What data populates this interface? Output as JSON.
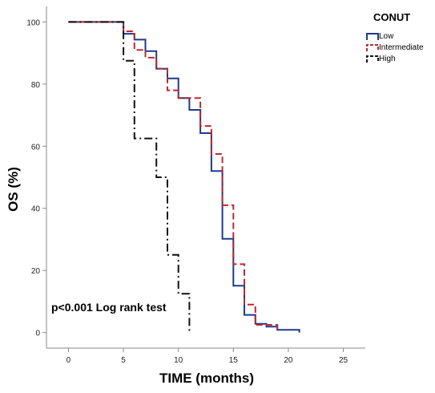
{
  "chart_data": {
    "type": "line",
    "step": true,
    "xlabel": "TIME (months)",
    "ylabel": "OS (%)",
    "xlim": [
      -2,
      27
    ],
    "ylim": [
      -5,
      105
    ],
    "xticks": [
      0,
      5,
      10,
      15,
      20,
      25
    ],
    "yticks": [
      0,
      20,
      40,
      60,
      80,
      100
    ],
    "x_tick_labels": [
      "0",
      "5",
      "10",
      "15",
      "20",
      "25"
    ],
    "y_tick_labels": [
      "0",
      "20",
      "40",
      "60",
      "80",
      "100"
    ],
    "grid": false,
    "legend": {
      "title": "CONUT",
      "position": "top-right"
    },
    "annotation": "p<0.001 Log rank test",
    "series": [
      {
        "name": "Low",
        "color": "#1f3a8a",
        "dash": "solid",
        "points": [
          [
            0,
            100
          ],
          [
            5,
            100
          ],
          [
            5,
            96.2
          ],
          [
            6,
            96.2
          ],
          [
            6,
            94.3
          ],
          [
            7,
            94.3
          ],
          [
            7,
            90.6
          ],
          [
            8,
            90.6
          ],
          [
            8,
            84.9
          ],
          [
            9,
            84.9
          ],
          [
            9,
            81.8
          ],
          [
            10,
            81.8
          ],
          [
            10,
            75.5
          ],
          [
            11,
            75.5
          ],
          [
            11,
            71.7
          ],
          [
            12,
            71.7
          ],
          [
            12,
            64.2
          ],
          [
            13,
            64.2
          ],
          [
            13,
            52
          ],
          [
            14,
            52
          ],
          [
            14,
            30.2
          ],
          [
            15,
            30.2
          ],
          [
            15,
            15.1
          ],
          [
            16,
            15.1
          ],
          [
            16,
            5.7
          ],
          [
            17,
            5.7
          ],
          [
            17,
            2.8
          ],
          [
            18,
            2.8
          ],
          [
            18,
            1.9
          ],
          [
            19,
            1.9
          ],
          [
            19,
            0.9
          ],
          [
            21,
            0.9
          ],
          [
            21,
            0
          ]
        ]
      },
      {
        "name": "Intermediate",
        "color": "#c0282d",
        "dash": "dashed",
        "points": [
          [
            0,
            100
          ],
          [
            5,
            100
          ],
          [
            5,
            97
          ],
          [
            6,
            97
          ],
          [
            6,
            91
          ],
          [
            7,
            91
          ],
          [
            7,
            88.5
          ],
          [
            8,
            88.5
          ],
          [
            8,
            85
          ],
          [
            9,
            85
          ],
          [
            9,
            78
          ],
          [
            10,
            78
          ],
          [
            10,
            75.5
          ],
          [
            12,
            75.5
          ],
          [
            12,
            66.5
          ],
          [
            13,
            66.5
          ],
          [
            13,
            57.5
          ],
          [
            14,
            57.5
          ],
          [
            14,
            41
          ],
          [
            15,
            41
          ],
          [
            15,
            22
          ],
          [
            16,
            22
          ],
          [
            16,
            9
          ],
          [
            17,
            9
          ],
          [
            17,
            2.5
          ],
          [
            19,
            2.5
          ],
          [
            19,
            0
          ]
        ]
      },
      {
        "name": "High",
        "color": "#111111",
        "dash": "dashdot",
        "points": [
          [
            0,
            100
          ],
          [
            5,
            100
          ],
          [
            5,
            87.5
          ],
          [
            6,
            87.5
          ],
          [
            6,
            62.5
          ],
          [
            8,
            62.5
          ],
          [
            8,
            50
          ],
          [
            9,
            50
          ],
          [
            9,
            25
          ],
          [
            10,
            25
          ],
          [
            10,
            12.5
          ],
          [
            11,
            12.5
          ],
          [
            11,
            0
          ]
        ]
      }
    ]
  }
}
